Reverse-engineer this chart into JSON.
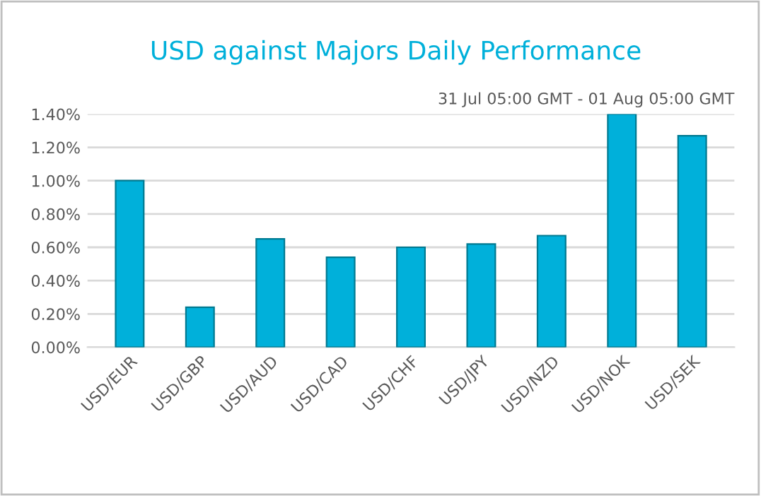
{
  "chart_data": {
    "type": "bar",
    "title": "USD against Majors Daily Performance",
    "subtitle": "31 Jul 05:00 GMT - 01 Aug 05:00 GMT",
    "categories": [
      "USD/EUR",
      "USD/GBP",
      "USD/AUD",
      "USD/CAD",
      "USD/CHF",
      "USD/JPY",
      "USD/NZD",
      "USD/NOK",
      "USD/SEK"
    ],
    "values": [
      1.0,
      0.24,
      0.65,
      0.54,
      0.6,
      0.62,
      0.67,
      1.4,
      1.27
    ],
    "color": "#00b0da",
    "ylim": [
      0,
      1.4
    ],
    "yticks": [
      {
        "value": 0,
        "label": "0.00%"
      },
      {
        "value": 0.2,
        "label": "0.20%"
      },
      {
        "value": 0.4,
        "label": "0.40%"
      },
      {
        "value": 0.6,
        "label": "0.60%"
      },
      {
        "value": 0.8,
        "label": "0.80%"
      },
      {
        "value": 1.0,
        "label": "1.00%"
      },
      {
        "value": 1.2,
        "label": "1.20%"
      },
      {
        "value": 1.4,
        "label": "1.40%"
      }
    ],
    "grid": "y",
    "legend": false
  }
}
